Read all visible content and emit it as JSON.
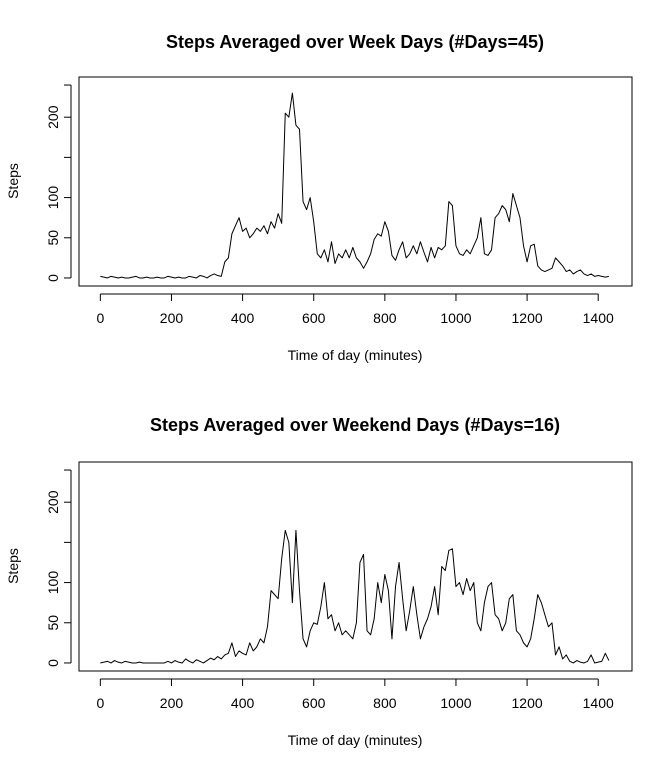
{
  "chart_data": [
    {
      "type": "line",
      "title": "Steps Averaged over Week Days (#Days=45)",
      "xlabel": "Time of day (minutes)",
      "ylabel": "Steps",
      "xlim": [
        -60,
        1495
      ],
      "ylim": [
        -10,
        250
      ],
      "xticks": [
        0,
        200,
        400,
        600,
        800,
        1000,
        1200,
        1400
      ],
      "yticks": [
        0,
        50,
        100,
        200
      ],
      "grid": false,
      "legend": "none",
      "series": [
        {
          "x": [
            0,
            10,
            20,
            30,
            40,
            50,
            60,
            70,
            80,
            90,
            100,
            110,
            120,
            130,
            140,
            150,
            160,
            170,
            180,
            190,
            200,
            210,
            220,
            230,
            240,
            250,
            260,
            270,
            280,
            290,
            300,
            310,
            320,
            330,
            340,
            350,
            360,
            370,
            380,
            390,
            400,
            410,
            420,
            430,
            440,
            450,
            460,
            470,
            480,
            490,
            500,
            510,
            520,
            530,
            540,
            550,
            560,
            570,
            580,
            590,
            600,
            610,
            620,
            630,
            640,
            650,
            660,
            670,
            680,
            690,
            700,
            710,
            720,
            730,
            740,
            750,
            760,
            770,
            780,
            790,
            800,
            810,
            820,
            830,
            840,
            850,
            860,
            870,
            880,
            890,
            900,
            910,
            920,
            930,
            940,
            950,
            960,
            970,
            980,
            990,
            1000,
            1010,
            1020,
            1030,
            1040,
            1050,
            1060,
            1070,
            1080,
            1090,
            1100,
            1110,
            1120,
            1130,
            1140,
            1150,
            1160,
            1170,
            1180,
            1190,
            1200,
            1210,
            1220,
            1230,
            1240,
            1250,
            1260,
            1270,
            1280,
            1290,
            1300,
            1310,
            1320,
            1330,
            1340,
            1350,
            1360,
            1370,
            1380,
            1390,
            1400,
            1410,
            1420,
            1430
          ],
          "y": [
            2,
            1,
            0,
            2,
            1,
            0,
            1,
            0,
            0,
            1,
            2,
            0,
            0,
            1,
            0,
            0,
            1,
            0,
            0,
            2,
            1,
            0,
            1,
            0,
            0,
            2,
            1,
            0,
            3,
            2,
            0,
            3,
            5,
            3,
            2,
            20,
            25,
            55,
            65,
            75,
            58,
            62,
            50,
            55,
            62,
            58,
            65,
            55,
            70,
            62,
            80,
            68,
            205,
            200,
            230,
            190,
            185,
            95,
            85,
            100,
            70,
            30,
            25,
            35,
            20,
            45,
            18,
            30,
            25,
            35,
            25,
            38,
            25,
            20,
            12,
            20,
            30,
            48,
            55,
            52,
            70,
            58,
            28,
            22,
            35,
            45,
            25,
            30,
            40,
            30,
            45,
            32,
            20,
            38,
            25,
            38,
            35,
            40,
            95,
            90,
            40,
            30,
            28,
            35,
            30,
            40,
            50,
            75,
            30,
            28,
            35,
            75,
            80,
            90,
            85,
            70,
            105,
            90,
            75,
            40,
            20,
            40,
            42,
            15,
            10,
            8,
            10,
            12,
            25,
            20,
            15,
            8,
            10,
            5,
            8,
            10,
            5,
            3,
            5,
            2,
            3,
            2,
            1,
            2
          ]
        }
      ]
    },
    {
      "type": "line",
      "title": "Steps Averaged over Weekend Days (#Days=16)",
      "xlabel": "Time of day (minutes)",
      "ylabel": "Steps",
      "xlim": [
        -60,
        1495
      ],
      "ylim": [
        -10,
        250
      ],
      "xticks": [
        0,
        200,
        400,
        600,
        800,
        1000,
        1200,
        1400
      ],
      "yticks": [
        0,
        50,
        100,
        200
      ],
      "grid": false,
      "legend": "none",
      "series": [
        {
          "x": [
            0,
            10,
            20,
            30,
            40,
            50,
            60,
            70,
            80,
            90,
            100,
            110,
            120,
            130,
            140,
            150,
            160,
            170,
            180,
            190,
            200,
            210,
            220,
            230,
            240,
            250,
            260,
            270,
            280,
            290,
            300,
            310,
            320,
            330,
            340,
            350,
            360,
            370,
            380,
            390,
            400,
            410,
            420,
            430,
            440,
            450,
            460,
            470,
            480,
            490,
            500,
            510,
            520,
            530,
            540,
            550,
            560,
            570,
            580,
            590,
            600,
            610,
            620,
            630,
            640,
            650,
            660,
            670,
            680,
            690,
            700,
            710,
            720,
            730,
            740,
            750,
            760,
            770,
            780,
            790,
            800,
            810,
            820,
            830,
            840,
            850,
            860,
            870,
            880,
            890,
            900,
            910,
            920,
            930,
            940,
            950,
            960,
            970,
            980,
            990,
            1000,
            1010,
            1020,
            1030,
            1040,
            1050,
            1060,
            1070,
            1080,
            1090,
            1100,
            1110,
            1120,
            1130,
            1140,
            1150,
            1160,
            1170,
            1180,
            1190,
            1200,
            1210,
            1220,
            1230,
            1240,
            1250,
            1260,
            1270,
            1280,
            1290,
            1300,
            1310,
            1320,
            1330,
            1340,
            1350,
            1360,
            1370,
            1380,
            1390,
            1400,
            1410,
            1420,
            1430
          ],
          "y": [
            0,
            1,
            2,
            0,
            3,
            1,
            0,
            2,
            1,
            0,
            0,
            1,
            0,
            0,
            0,
            0,
            0,
            0,
            0,
            2,
            0,
            3,
            1,
            0,
            5,
            2,
            0,
            4,
            2,
            0,
            3,
            6,
            4,
            8,
            5,
            10,
            12,
            25,
            8,
            15,
            12,
            10,
            25,
            15,
            20,
            30,
            25,
            45,
            90,
            85,
            80,
            130,
            165,
            150,
            75,
            165,
            90,
            30,
            20,
            40,
            50,
            48,
            70,
            100,
            55,
            60,
            40,
            50,
            35,
            40,
            35,
            30,
            50,
            125,
            135,
            40,
            35,
            55,
            100,
            75,
            110,
            90,
            30,
            95,
            125,
            80,
            40,
            65,
            95,
            60,
            30,
            45,
            55,
            70,
            95,
            60,
            120,
            115,
            140,
            142,
            95,
            100,
            85,
            105,
            90,
            100,
            50,
            40,
            75,
            95,
            100,
            60,
            55,
            40,
            50,
            80,
            85,
            40,
            35,
            25,
            20,
            30,
            55,
            85,
            75,
            60,
            45,
            50,
            10,
            20,
            5,
            10,
            2,
            0,
            3,
            1,
            0,
            2,
            10,
            0,
            1,
            2,
            12,
            3
          ]
        }
      ]
    }
  ]
}
